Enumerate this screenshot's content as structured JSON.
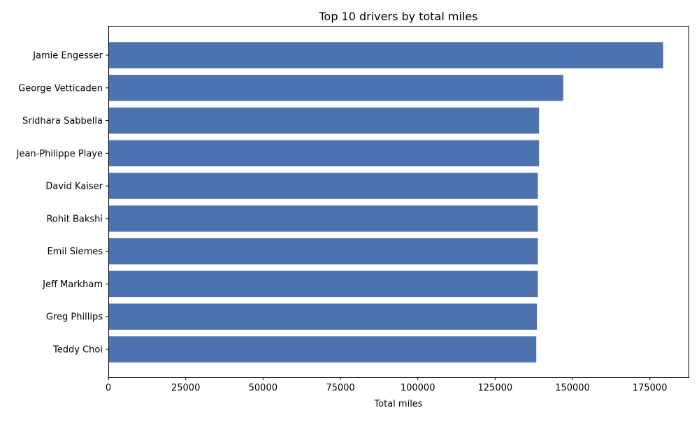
{
  "chart_data": {
    "type": "bar",
    "orientation": "horizontal",
    "title": "Top 10 drivers by total miles",
    "xlabel": "Total miles",
    "ylabel": "",
    "xlim": [
      0,
      187500
    ],
    "x_ticks": [
      0,
      25000,
      50000,
      75000,
      100000,
      125000,
      150000,
      175000
    ],
    "grid": false,
    "bar_color": "#4c72b0",
    "categories": [
      "Jamie Engesser",
      "George Vetticaden",
      "Sridhara Sabbella",
      "Jean-Philippe Playe",
      "David Kaiser",
      "Rohit Bakshi",
      "Emil Siemes",
      "Jeff Markham",
      "Greg Phillips",
      "Teddy Choi"
    ],
    "values": [
      179300,
      147000,
      139200,
      139200,
      138800,
      138800,
      138800,
      138800,
      138500,
      138300
    ]
  }
}
